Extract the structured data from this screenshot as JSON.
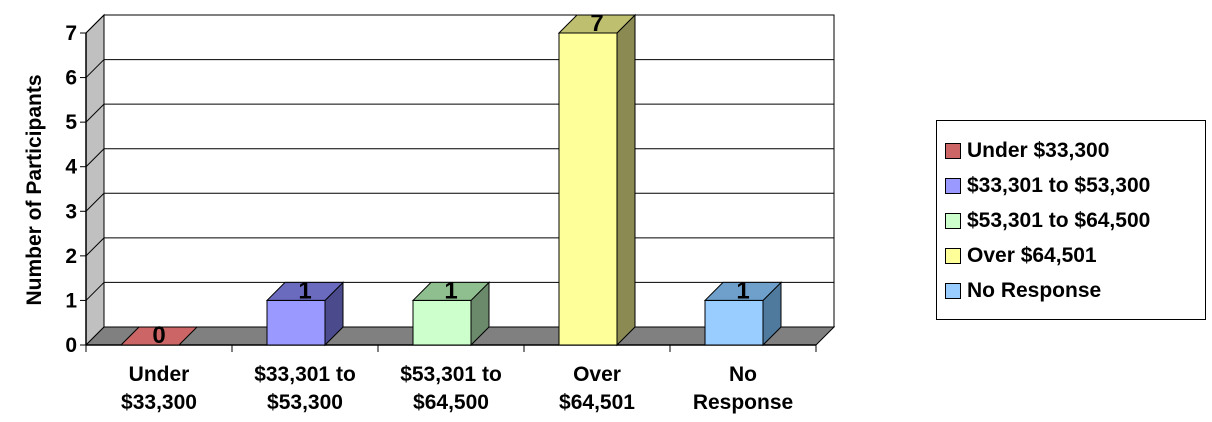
{
  "chart_data": {
    "type": "bar",
    "title": "",
    "xlabel": "",
    "ylabel": "Number of Participants",
    "ylim": [
      0,
      7
    ],
    "yticks": [
      "0",
      "1",
      "2",
      "3",
      "4",
      "5",
      "6",
      "7"
    ],
    "categories": [
      [
        "Under",
        "$33,300"
      ],
      [
        "$33,301 to",
        "$53,300"
      ],
      [
        "$53,301 to",
        "$64,500"
      ],
      [
        "Over",
        "$64,501"
      ],
      [
        "No",
        "Response"
      ]
    ],
    "values": [
      0,
      1,
      1,
      7,
      1
    ],
    "data_labels": [
      "0",
      "1",
      "1",
      "7",
      "1"
    ],
    "grid": true,
    "three_d": true,
    "legend_position": "right",
    "legend": [
      {
        "label": "Under $33,300",
        "color": "#cc6666"
      },
      {
        "label": "$33,301 to $53,300",
        "color": "#9999ff"
      },
      {
        "label": "$53,301 to $64,500",
        "color": "#ccffcc"
      },
      {
        "label": "Over $64,501",
        "color": "#ffff99"
      },
      {
        "label": "No Response",
        "color": "#99ccff"
      }
    ],
    "colors": {
      "bar_fronts": [
        "#cc6666",
        "#9999ff",
        "#ccffcc",
        "#ffff99",
        "#99ccff"
      ],
      "bar_sides": [
        "#8a3c3c",
        "#4a4a8c",
        "#6b8a6b",
        "#8a8a52",
        "#4f7a9e"
      ],
      "bar_tops": [
        "#a84f4f",
        "#6a6abf",
        "#8fbf8f",
        "#bfbf70",
        "#6fa0cc"
      ],
      "floor": "#808080",
      "wall": "#ffffff",
      "side_wall": "#c0c0c0"
    }
  }
}
